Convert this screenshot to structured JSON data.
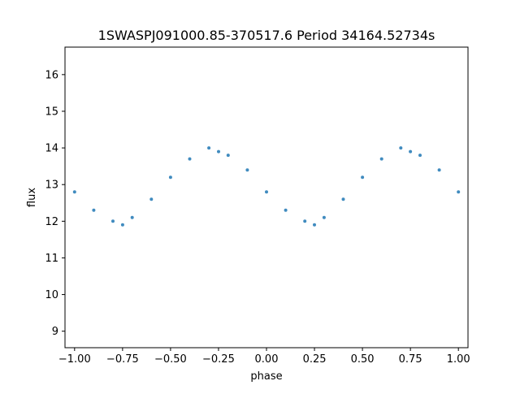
{
  "chart_data": {
    "type": "scatter",
    "title": "1SWASPJ091000.85-370517.6 Period 34164.52734s",
    "xlabel": "phase",
    "ylabel": "flux",
    "xlim": [
      -1.05,
      1.05
    ],
    "ylim": [
      8.55,
      16.75
    ],
    "xticks": [
      -1.0,
      -0.75,
      -0.5,
      -0.25,
      0.0,
      0.25,
      0.5,
      0.75,
      1.0
    ],
    "xtick_labels": [
      "−1.00",
      "−0.75",
      "−0.50",
      "−0.25",
      "0.00",
      "0.25",
      "0.50",
      "0.75",
      "1.00"
    ],
    "yticks": [
      9,
      10,
      11,
      12,
      13,
      14,
      15,
      16
    ],
    "ytick_labels": [
      "9",
      "10",
      "11",
      "12",
      "13",
      "14",
      "15",
      "16"
    ],
    "grid": false,
    "legend": "none",
    "marker_color": "#1f77b4",
    "series": [
      {
        "x": [
          -1.0,
          -0.9,
          -0.8,
          -0.75,
          -0.7,
          -0.6,
          -0.5,
          -0.4,
          -0.3,
          -0.25,
          -0.2,
          -0.1,
          0.0,
          0.1,
          0.2,
          0.25,
          0.3,
          0.4,
          0.5,
          0.6,
          0.7,
          0.75,
          0.8,
          0.9,
          1.0
        ],
        "y": [
          12.8,
          12.3,
          12.0,
          11.9,
          12.1,
          12.6,
          13.2,
          13.7,
          14.0,
          13.9,
          13.8,
          13.4,
          12.8,
          12.3,
          12.0,
          11.9,
          12.1,
          12.6,
          13.2,
          13.7,
          14.0,
          13.9,
          13.8,
          13.4,
          12.8
        ]
      }
    ]
  }
}
